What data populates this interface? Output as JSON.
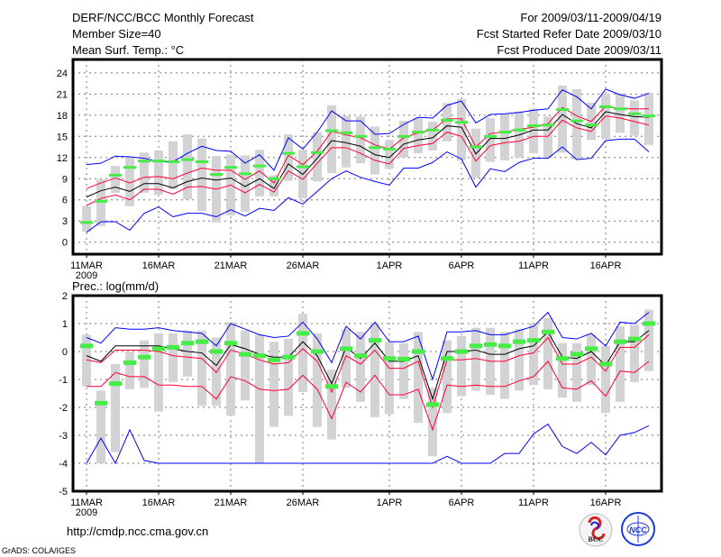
{
  "header": {
    "title": "DERF/NCC/BCC Monthly Forecast",
    "member_size": "Member Size=40",
    "variable": "Mean Surf. Temp.: °C",
    "period": "For 2009/03/11-2009/04/19",
    "started": "Fcst Started Refer Date 2009/03/10",
    "produced": "Fcst Produced Date 2009/03/11"
  },
  "footer": {
    "url": "http://cmdp.ncc.cma.gov.cn",
    "grads": "GrADS: COLA/IGES",
    "logo_bcc": "BCC",
    "logo_ncc": "NCC"
  },
  "colors": {
    "max_min": "#0000ff",
    "spread": "#ff0033",
    "mean": "#000000",
    "marker": "#44ee44",
    "bar": "#d3d3d6"
  },
  "chart_data": [
    {
      "type": "line",
      "title": "Mean Surf. Temp.: °C",
      "x_ticks": [
        "11MAR",
        "16MAR",
        "21MAR",
        "26MAR",
        "1APR",
        "6APR",
        "11APR",
        "16APR"
      ],
      "x_tick_days": [
        0,
        5,
        10,
        15,
        21,
        26,
        31,
        36
      ],
      "year_label": "2009",
      "y_ticks": [
        "0",
        "3",
        "6",
        "9",
        "12",
        "15",
        "18",
        "21",
        "24"
      ],
      "ylim": [
        -1.7,
        25.9
      ],
      "days": 40,
      "series": [
        {
          "name": "max",
          "color": "#0000ff",
          "values": [
            11.0,
            11.2,
            12.2,
            12.1,
            11.9,
            11.4,
            11.4,
            12.6,
            13.6,
            13.0,
            12.9,
            11.2,
            12.4,
            10.2,
            14.8,
            13.2,
            15.6,
            18.6,
            17.2,
            17.2,
            15.3,
            15.4,
            16.7,
            17.7,
            17.6,
            19.4,
            20.0,
            16.9,
            18.1,
            18.2,
            18.4,
            18.7,
            18.9,
            21.6,
            20.6,
            18.9,
            21.7,
            20.9,
            20.4,
            21.1
          ]
        },
        {
          "name": "upper",
          "color": "#ff0033",
          "values": [
            7.6,
            8.4,
            9.1,
            8.4,
            9.2,
            9.3,
            9.0,
            9.8,
            10.5,
            10.2,
            10.2,
            8.9,
            10.1,
            8.4,
            12.3,
            11.0,
            12.9,
            15.7,
            15.2,
            14.8,
            13.8,
            13.2,
            14.8,
            15.5,
            15.9,
            17.5,
            17.5,
            13.5,
            15.4,
            15.6,
            16.0,
            16.3,
            16.8,
            19.1,
            17.9,
            17.1,
            19.3,
            18.9,
            18.9,
            18.9
          ]
        },
        {
          "name": "mean",
          "color": "#000000",
          "values": [
            6.4,
            7.3,
            7.8,
            7.2,
            8.3,
            8.3,
            7.7,
            8.6,
            9.1,
            8.8,
            9.1,
            7.9,
            9.0,
            7.6,
            11.1,
            9.6,
            11.9,
            14.4,
            14.1,
            13.6,
            12.4,
            12.0,
            13.9,
            14.5,
            14.8,
            16.5,
            16.3,
            12.5,
            14.7,
            14.7,
            15.2,
            15.9,
            15.9,
            18.1,
            16.8,
            16.2,
            18.5,
            18.1,
            17.8,
            17.7
          ]
        },
        {
          "name": "lower",
          "color": "#ff0033",
          "values": [
            5.2,
            6.2,
            6.7,
            6.0,
            7.5,
            7.5,
            6.8,
            7.8,
            7.9,
            7.5,
            8.1,
            7.0,
            8.2,
            7.1,
            10.1,
            8.9,
            11.2,
            13.4,
            13.4,
            12.6,
            11.6,
            11.1,
            13.3,
            13.7,
            14.0,
            15.6,
            15.0,
            11.5,
            13.7,
            14.1,
            14.3,
            15.0,
            15.0,
            17.3,
            16.2,
            15.7,
            17.9,
            17.6,
            17.1,
            16.6
          ]
        },
        {
          "name": "min",
          "color": "#0000ff",
          "values": [
            1.4,
            2.9,
            2.9,
            1.7,
            4.1,
            5.0,
            3.6,
            4.1,
            4.1,
            3.6,
            4.6,
            3.7,
            4.8,
            4.5,
            6.3,
            5.4,
            7.2,
            9.0,
            10.1,
            9.2,
            8.6,
            8.1,
            10.5,
            10.5,
            11.3,
            12.8,
            11.8,
            7.8,
            10.4,
            10.0,
            11.3,
            11.9,
            11.9,
            13.5,
            11.7,
            11.9,
            14.4,
            14.6,
            14.6,
            12.8
          ]
        }
      ],
      "markers": [
        2.8,
        5.8,
        9.5,
        10.6,
        11.5,
        11.5,
        11.4,
        11.7,
        11.4,
        9.6,
        10.6,
        9.7,
        10.8,
        9.0,
        12.6,
        10.7,
        12.7,
        15.8,
        15.5,
        15.0,
        13.4,
        13.2,
        15.0,
        15.6,
        15.9,
        17.3,
        17.0,
        13.5,
        15.0,
        15.6,
        15.9,
        16.5,
        16.6,
        18.8,
        17.2,
        16.6,
        19.2,
        18.9,
        18.2,
        17.9
      ],
      "bars": [
        [
          1.5,
          5.1
        ],
        [
          2.3,
          8.9
        ],
        [
          7,
          10.8
        ],
        [
          5.1,
          12
        ],
        [
          7,
          12.7
        ],
        [
          6.7,
          13
        ],
        [
          7.5,
          14.3
        ],
        [
          6.1,
          15.3
        ],
        [
          4.4,
          14.7
        ],
        [
          2.8,
          12.2
        ],
        [
          3.8,
          12.4
        ],
        [
          4.3,
          12.3
        ],
        [
          6.5,
          13.1
        ],
        [
          6.5,
          9.5
        ],
        [
          8.7,
          15.3
        ],
        [
          6.2,
          13.1
        ],
        [
          8.6,
          15.6
        ],
        [
          9.8,
          19.4
        ],
        [
          10.6,
          17.9
        ],
        [
          11.2,
          17.8
        ],
        [
          9.6,
          16.4
        ],
        [
          10.4,
          14.5
        ],
        [
          12,
          17.2
        ],
        [
          12.6,
          17.6
        ],
        [
          13,
          17.1
        ],
        [
          14.3,
          19.7
        ],
        [
          11.6,
          20.3
        ],
        [
          9.1,
          16.1
        ],
        [
          11.4,
          17.6
        ],
        [
          11.6,
          18.2
        ],
        [
          12,
          18.5
        ],
        [
          12.6,
          18.9
        ],
        [
          11.9,
          17.8
        ],
        [
          12.7,
          22.2
        ],
        [
          11.7,
          21.7
        ],
        [
          14.5,
          19.8
        ],
        [
          14.6,
          21.1
        ],
        [
          15.5,
          21.1
        ],
        [
          15.1,
          20.1
        ],
        [
          13.8,
          21.2
        ]
      ]
    },
    {
      "type": "line",
      "title": "Prec.: log(mm/d)",
      "x_ticks": [
        "11MAR",
        "16MAR",
        "21MAR",
        "26MAR",
        "1APR",
        "6APR",
        "11APR",
        "16APR"
      ],
      "x_tick_days": [
        0,
        5,
        10,
        15,
        21,
        26,
        31,
        36
      ],
      "year_label": "2009",
      "y_ticks": [
        "-5",
        "-4",
        "-3",
        "-2",
        "-1",
        "0",
        "1",
        "2"
      ],
      "ylim": [
        -5,
        2
      ],
      "days": 40,
      "series": [
        {
          "name": "max",
          "color": "#0000ff",
          "values": [
            0.5,
            0.3,
            0.85,
            0.8,
            0.8,
            0.85,
            0.75,
            0.7,
            0.65,
            0.2,
            1.0,
            0.8,
            0.6,
            0.5,
            0.55,
            1.05,
            0.45,
            -0.4,
            0.9,
            0.45,
            1.05,
            0.35,
            0.35,
            0.55,
            -1.0,
            0.7,
            0.7,
            0.75,
            0.6,
            0.6,
            0.75,
            0.9,
            1.4,
            0.5,
            0.45,
            0.65,
            0.2,
            1.05,
            1.0,
            1.4
          ]
        },
        {
          "name": "upper",
          "color": "#ff0033",
          "values": [
            -0.3,
            -0.4,
            0.05,
            0.05,
            0.05,
            0.0,
            -0.15,
            -0.2,
            -0.25,
            -0.75,
            0.05,
            -0.1,
            -0.3,
            -0.45,
            -0.4,
            0.1,
            -0.35,
            -1.45,
            -0.15,
            -0.45,
            0.05,
            -0.6,
            -0.6,
            -0.35,
            -2.0,
            -0.3,
            -0.3,
            -0.25,
            -0.35,
            -0.35,
            -0.15,
            -0.05,
            0.5,
            -0.45,
            -0.45,
            -0.2,
            -0.7,
            0.15,
            0.15,
            0.6
          ]
        },
        {
          "name": "mean",
          "color": "#000000",
          "values": [
            -0.15,
            -0.35,
            0.2,
            0.2,
            0.2,
            0.2,
            0.1,
            0.0,
            -0.05,
            -0.5,
            0.25,
            0.1,
            -0.1,
            -0.2,
            -0.2,
            0.35,
            -0.15,
            -1.15,
            0.15,
            -0.25,
            0.3,
            -0.35,
            -0.35,
            -0.15,
            -1.7,
            0.0,
            0.0,
            0.05,
            -0.1,
            -0.1,
            0.1,
            0.2,
            0.7,
            -0.2,
            -0.25,
            0.0,
            -0.5,
            0.35,
            0.35,
            0.75
          ]
        },
        {
          "name": "lower",
          "color": "#ff0033",
          "values": [
            -1.25,
            -1.25,
            -0.75,
            -0.9,
            -0.9,
            -1.2,
            -1.2,
            -1.25,
            -1.25,
            -1.7,
            -0.9,
            -1.05,
            -1.35,
            -1.4,
            -1.35,
            -0.85,
            -1.35,
            -2.4,
            -1.1,
            -1.45,
            -0.85,
            -1.55,
            -1.55,
            -1.35,
            -2.8,
            -1.2,
            -1.25,
            -1.2,
            -1.25,
            -1.25,
            -1.05,
            -0.9,
            -0.35,
            -1.3,
            -1.35,
            -1.05,
            -1.6,
            -0.7,
            -0.75,
            -0.35
          ]
        },
        {
          "name": "min",
          "color": "#0000ff",
          "values": [
            -4,
            -3.1,
            -4,
            -2.8,
            -3.9,
            -4,
            -4,
            -4,
            -4,
            -4,
            -4,
            -4,
            -4,
            -4,
            -4,
            -4,
            -4,
            -4,
            -4,
            -4,
            -4,
            -4,
            -4,
            -4,
            -4,
            -3.75,
            -4,
            -4,
            -4,
            -3.65,
            -3.65,
            -2.95,
            -2.6,
            -3.4,
            -3.65,
            -3.25,
            -3.7,
            -3.0,
            -2.9,
            -2.65
          ]
        }
      ],
      "markers": [
        0.2,
        -1.85,
        -1.15,
        -0.4,
        -0.2,
        0.1,
        0.15,
        0.3,
        0.35,
        0.0,
        0.3,
        -0.1,
        -0.15,
        -0.3,
        -0.2,
        0.65,
        0.0,
        -1.25,
        0.1,
        -0.15,
        0.4,
        -0.25,
        -0.27,
        0.0,
        -1.9,
        -0.25,
        0.0,
        0.2,
        0.25,
        0.2,
        0.35,
        0.4,
        0.7,
        -0.25,
        -0.1,
        0.1,
        -0.45,
        0.35,
        0.45,
        1.0
      ],
      "bars": [
        [
          -1.25,
          0.6
        ],
        [
          -4,
          -1.4
        ],
        [
          -3.6,
          -0.45
        ],
        [
          -1.35,
          0
        ],
        [
          -1.3,
          0.4
        ],
        [
          -2.15,
          0.65
        ],
        [
          -1.1,
          0.65
        ],
        [
          -0.9,
          0.75
        ],
        [
          -1.95,
          0.75
        ],
        [
          -1.95,
          0.5
        ],
        [
          -2.3,
          1.05
        ],
        [
          -1.75,
          0.75
        ],
        [
          -4,
          0.6
        ],
        [
          -2.7,
          0.35
        ],
        [
          -2.3,
          0.45
        ],
        [
          -1.45,
          1.35
        ],
        [
          -2.7,
          0.65
        ],
        [
          -3.15,
          -0.65
        ],
        [
          -1.3,
          0.8
        ],
        [
          -1.8,
          0.7
        ],
        [
          -2.35,
          1.0
        ],
        [
          -2.25,
          0.35
        ],
        [
          -1.7,
          0.3
        ],
        [
          -2.55,
          0.7
        ],
        [
          -3.75,
          -1.3
        ],
        [
          -2.2,
          0.4
        ],
        [
          -1.6,
          0.55
        ],
        [
          -1.4,
          0.85
        ],
        [
          -1.55,
          0.85
        ],
        [
          -1.7,
          0.7
        ],
        [
          -1.4,
          0.8
        ],
        [
          -1.2,
          1.0
        ],
        [
          -1.35,
          1.2
        ],
        [
          -1.65,
          0.3
        ],
        [
          -1.8,
          0.3
        ],
        [
          -1.2,
          0.6
        ],
        [
          -2.2,
          0.2
        ],
        [
          -1.8,
          0.9
        ],
        [
          -1.1,
          0.95
        ],
        [
          -0.7,
          1.5
        ]
      ]
    }
  ]
}
